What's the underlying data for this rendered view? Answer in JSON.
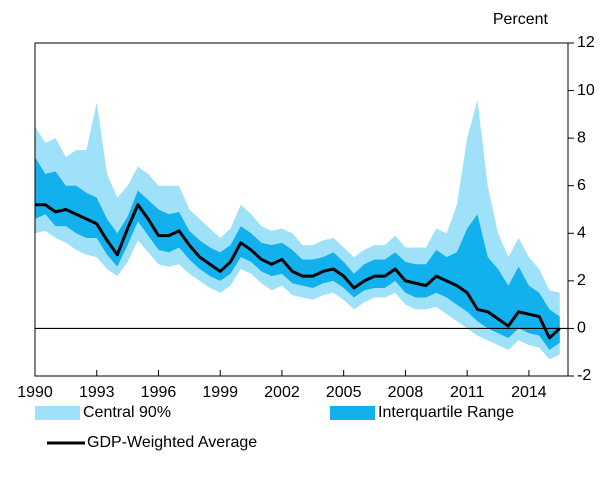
{
  "chart_data": {
    "type": "band-line",
    "unit_label": "Percent",
    "x": [
      1990,
      1990.5,
      1991,
      1991.5,
      1992,
      1992.5,
      1993,
      1993.5,
      1994,
      1994.5,
      1995,
      1995.5,
      1996,
      1996.5,
      1997,
      1997.5,
      1998,
      1998.5,
      1999,
      1999.5,
      2000,
      2000.5,
      2001,
      2001.5,
      2002,
      2002.5,
      2003,
      2003.5,
      2004,
      2004.5,
      2005,
      2005.5,
      2006,
      2006.5,
      2007,
      2007.5,
      2008,
      2008.5,
      2009,
      2009.5,
      2010,
      2010.5,
      2011,
      2011.5,
      2012,
      2012.5,
      2013,
      2013.5,
      2014,
      2014.5,
      2015,
      2015.5
    ],
    "series": [
      {
        "name": "Central 90%",
        "color": "#9fe1f9",
        "upper": [
          8.5,
          7.8,
          8.0,
          7.2,
          7.5,
          7.5,
          9.5,
          6.5,
          5.5,
          6.0,
          6.8,
          6.5,
          6.0,
          6.0,
          6.0,
          5.0,
          4.6,
          4.2,
          3.8,
          4.2,
          5.2,
          4.8,
          4.3,
          4.1,
          4.2,
          4.0,
          3.5,
          3.5,
          3.7,
          3.8,
          3.4,
          3.0,
          3.3,
          3.5,
          3.5,
          3.9,
          3.4,
          3.4,
          3.4,
          4.2,
          4.0,
          5.2,
          8.0,
          9.6,
          6.0,
          4.0,
          3.0,
          3.8,
          3.0,
          2.5,
          1.6,
          1.5
        ],
        "lower": [
          4.0,
          4.1,
          3.8,
          3.6,
          3.3,
          3.1,
          3.0,
          2.5,
          2.2,
          2.8,
          3.7,
          3.2,
          2.7,
          2.6,
          2.7,
          2.3,
          2.0,
          1.7,
          1.5,
          1.8,
          2.5,
          2.3,
          1.9,
          1.6,
          1.8,
          1.4,
          1.3,
          1.2,
          1.4,
          1.5,
          1.2,
          0.8,
          1.1,
          1.3,
          1.3,
          1.5,
          1.0,
          0.8,
          0.8,
          0.9,
          0.6,
          0.3,
          0.0,
          -0.3,
          -0.5,
          -0.7,
          -0.9,
          -0.5,
          -0.7,
          -0.8,
          -1.3,
          -1.1
        ]
      },
      {
        "name": "Interquartile Range",
        "color": "#12b1ee",
        "upper": [
          7.2,
          6.5,
          6.6,
          6.0,
          6.0,
          5.7,
          5.5,
          4.6,
          4.0,
          4.7,
          5.8,
          5.4,
          5.0,
          4.8,
          4.9,
          4.1,
          3.7,
          3.4,
          3.2,
          3.5,
          4.3,
          4.0,
          3.6,
          3.5,
          3.6,
          3.3,
          2.9,
          2.9,
          3.0,
          3.2,
          2.8,
          2.3,
          2.7,
          2.9,
          2.9,
          3.2,
          2.8,
          2.7,
          2.7,
          3.3,
          3.0,
          3.2,
          4.2,
          4.8,
          3.0,
          2.5,
          1.8,
          2.6,
          1.8,
          1.5,
          0.8,
          0.5
        ],
        "lower": [
          4.6,
          4.8,
          4.3,
          4.3,
          4.0,
          3.8,
          3.8,
          3.1,
          2.6,
          3.5,
          4.5,
          3.9,
          3.3,
          3.2,
          3.4,
          2.9,
          2.5,
          2.2,
          2.0,
          2.3,
          3.0,
          2.8,
          2.4,
          2.2,
          2.3,
          1.9,
          1.8,
          1.7,
          1.9,
          2.0,
          1.7,
          1.3,
          1.6,
          1.7,
          1.7,
          2.0,
          1.5,
          1.3,
          1.3,
          1.5,
          1.3,
          1.0,
          0.7,
          0.3,
          0.0,
          -0.2,
          -0.4,
          0.0,
          -0.2,
          -0.3,
          -0.9,
          -0.6
        ]
      },
      {
        "name": "GDP-Weighted Average",
        "color": "#000000",
        "values": [
          5.2,
          5.2,
          4.9,
          5.0,
          4.8,
          4.6,
          4.4,
          3.7,
          3.1,
          4.2,
          5.2,
          4.6,
          3.9,
          3.9,
          4.1,
          3.5,
          3.0,
          2.7,
          2.4,
          2.8,
          3.6,
          3.3,
          2.9,
          2.7,
          2.9,
          2.4,
          2.2,
          2.2,
          2.4,
          2.5,
          2.2,
          1.7,
          2.0,
          2.2,
          2.2,
          2.5,
          2.0,
          1.9,
          1.8,
          2.2,
          2.0,
          1.8,
          1.5,
          0.8,
          0.7,
          0.4,
          0.1,
          0.7,
          0.6,
          0.5,
          -0.4,
          0.0
        ]
      }
    ],
    "xlim": [
      1990,
      2015.9
    ],
    "xticks": [
      1990,
      1993,
      1996,
      1999,
      2002,
      2005,
      2008,
      2011,
      2014
    ],
    "ylim": [
      -2,
      12
    ],
    "yticks": [
      -2,
      0,
      2,
      4,
      6,
      8,
      10,
      12
    ]
  }
}
